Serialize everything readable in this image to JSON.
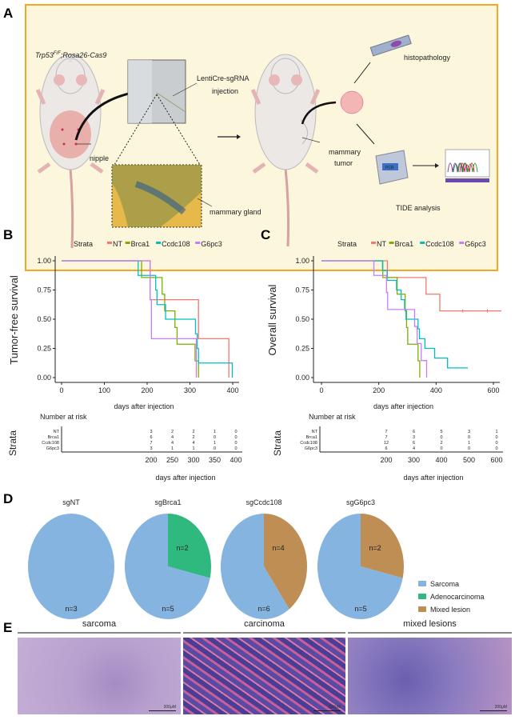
{
  "panel_labels": {
    "a": "A",
    "b": "B",
    "c": "C",
    "d": "D",
    "e": "E"
  },
  "schematic": {
    "genotype": "Trp53",
    "genotype_sup": "F/F",
    "genotype_rest": ";Rosa26-Cas9",
    "injection_line1": "LentiCre-sgRNA",
    "injection_line2": "injection",
    "nipple": "nipple",
    "mammary_gland": "mammary gland",
    "tumor_line1": "mammary",
    "tumor_line2": "tumor",
    "histopathology": "histopathology",
    "pcr_label": "PCR",
    "tide": "TIDE analysis",
    "box_border": "#F5A623",
    "box_fill": "#FBF6DC"
  },
  "colors": {
    "NT": "#F8766D",
    "Brca1": "#7CAE00",
    "Ccdc108": "#00BFC4",
    "G6pc3": "#C77CFF"
  },
  "chart_data": [
    {
      "type": "line",
      "subtype": "kaplan-meier",
      "legend_title": "Strata",
      "legend_position": "top",
      "ylabel": "Tumor-free survival",
      "xlabel": "days after injection",
      "xlim": [
        0,
        400
      ],
      "ylim": [
        0,
        1
      ],
      "xticks": [
        "0",
        "100",
        "200",
        "300",
        "400"
      ],
      "yticks": [
        "0.00",
        "0.25",
        "0.50",
        "0.75",
        "1.00"
      ],
      "series": [
        {
          "name": "NT",
          "points": [
            [
              0,
              1
            ],
            [
              207,
              0.667
            ],
            [
              320,
              0.333
            ],
            [
              391,
              0
            ]
          ]
        },
        {
          "name": "Brca1",
          "points": [
            [
              0,
              1
            ],
            [
              187,
              0.857
            ],
            [
              235,
              0.714
            ],
            [
              241,
              0.571
            ],
            [
              265,
              0.429
            ],
            [
              270,
              0.286
            ],
            [
              312,
              0.143
            ],
            [
              320,
              0
            ]
          ]
        },
        {
          "name": "Ccdc108",
          "points": [
            [
              0,
              1
            ],
            [
              179,
              0.875
            ],
            [
              220,
              0.75
            ],
            [
              223,
              0.625
            ],
            [
              243,
              0.5
            ],
            [
              313,
              0.375
            ],
            [
              317,
              0.25
            ],
            [
              320,
              0.125
            ],
            [
              399,
              0
            ]
          ]
        },
        {
          "name": "G6pc3",
          "points": [
            [
              0,
              1
            ],
            [
              207,
              0.667
            ],
            [
              210,
              0.333
            ],
            [
              315,
              0
            ]
          ]
        }
      ],
      "risk_table": {
        "title": "Number at risk",
        "ylabel": "Strata",
        "xlabel": "days after injection",
        "times": [
          200,
          250,
          300,
          350,
          400
        ],
        "tick_labels": [
          "200",
          "250",
          "300",
          "350",
          "400"
        ],
        "rows": [
          {
            "name": "NT",
            "counts": [
              "3",
              "2",
              "2",
              "1",
              "0"
            ]
          },
          {
            "name": "Brca1",
            "counts": [
              "6",
              "4",
              "2",
              "0",
              "0"
            ]
          },
          {
            "name": "Ccdc108",
            "counts": [
              "7",
              "4",
              "4",
              "1",
              "0"
            ]
          },
          {
            "name": "G6pc3",
            "counts": [
              "3",
              "1",
              "1",
              "0",
              "0"
            ]
          }
        ]
      }
    },
    {
      "type": "line",
      "subtype": "kaplan-meier",
      "legend_title": "Strata",
      "legend_position": "top",
      "ylabel": "Overall survival",
      "xlabel": "days after injection",
      "xlim": [
        0,
        600
      ],
      "ylim": [
        0,
        1
      ],
      "xticks": [
        "0",
        "200",
        "400",
        "600"
      ],
      "yticks": [
        "0.00",
        "0.25",
        "0.50",
        "0.75",
        "1.00"
      ],
      "series": [
        {
          "name": "NT",
          "points": [
            [
              0,
              1
            ],
            [
              230,
              0.857
            ],
            [
              365,
              0.714
            ],
            [
              413,
              0.571
            ],
            [
              628,
              0.571
            ]
          ],
          "censored": [
            493,
            579
          ]
        },
        {
          "name": "Brca1",
          "points": [
            [
              0,
              1
            ],
            [
              214,
              0.857
            ],
            [
              264,
              0.714
            ],
            [
              292,
              0.571
            ],
            [
              297,
              0.429
            ],
            [
              301,
              0.286
            ],
            [
              337,
              0.143
            ],
            [
              343,
              0
            ]
          ]
        },
        {
          "name": "Ccdc108",
          "points": [
            [
              0,
              1
            ],
            [
              213,
              0.917
            ],
            [
              229,
              0.833
            ],
            [
              262,
              0.75
            ],
            [
              278,
              0.667
            ],
            [
              290,
              0.583
            ],
            [
              295,
              0.5
            ],
            [
              337,
              0.417
            ],
            [
              342,
              0.333
            ],
            [
              361,
              0.25
            ],
            [
              395,
              0.167
            ],
            [
              440,
              0.083
            ],
            [
              511,
              0.083
            ]
          ]
        },
        {
          "name": "G6pc3",
          "points": [
            [
              0,
              1
            ],
            [
              183,
              0.875
            ],
            [
              227,
              0.729
            ],
            [
              231,
              0.583
            ],
            [
              325,
              0.438
            ],
            [
              334,
              0.292
            ],
            [
              348,
              0.146
            ],
            [
              367,
              0
            ]
          ]
        }
      ],
      "risk_table": {
        "title": "Number at risk",
        "ylabel": "Strata",
        "xlabel": "days after injection",
        "times": [
          200,
          300,
          400,
          500,
          600
        ],
        "tick_labels": [
          "200",
          "300",
          "400",
          "500",
          "600"
        ],
        "rows": [
          {
            "name": "NT",
            "counts": [
              "7",
              "6",
              "5",
              "3",
              "1"
            ]
          },
          {
            "name": "Brca1",
            "counts": [
              "7",
              "3",
              "0",
              "0",
              "0"
            ]
          },
          {
            "name": "Ccdc108",
            "counts": [
              "12",
              "6",
              "2",
              "1",
              "0"
            ]
          },
          {
            "name": "G6pc3",
            "counts": [
              "6",
              "4",
              "0",
              "0",
              "0"
            ]
          }
        ]
      }
    },
    {
      "type": "pie",
      "legend": [
        "Sarcoma",
        "Adenocarcinoma",
        "Mixed lesion"
      ],
      "legend_position": "right",
      "slice_colors": {
        "Sarcoma": "#85B4E0",
        "Adenocarcinoma": "#2FB97F",
        "Mixed lesion": "#BE8E55"
      },
      "pies": [
        {
          "title": "sgNT",
          "slices": [
            {
              "label": "Sarcoma",
              "value": 3,
              "text": "n=3"
            }
          ]
        },
        {
          "title": "sgBrca1",
          "slices": [
            {
              "label": "Adenocarcinoma",
              "value": 2,
              "text": "n=2"
            },
            {
              "label": "Sarcoma",
              "value": 5,
              "text": "n=5"
            }
          ]
        },
        {
          "title": "sgCcdc108",
          "slices": [
            {
              "label": "Mixed lesion",
              "value": 4,
              "text": "n=4"
            },
            {
              "label": "Sarcoma",
              "value": 6,
              "text": "n=6"
            }
          ]
        },
        {
          "title": "sgG6pc3",
          "slices": [
            {
              "label": "Mixed lesion",
              "value": 2,
              "text": "n=2"
            },
            {
              "label": "Sarcoma",
              "value": 5,
              "text": "n=5"
            }
          ]
        }
      ]
    }
  ],
  "histology": {
    "panels": [
      {
        "title": "sarcoma",
        "scale": "200μM"
      },
      {
        "title": "carcinoma",
        "scale": "200μM"
      },
      {
        "title": "mixed lesions",
        "scale": "200μM"
      }
    ]
  }
}
